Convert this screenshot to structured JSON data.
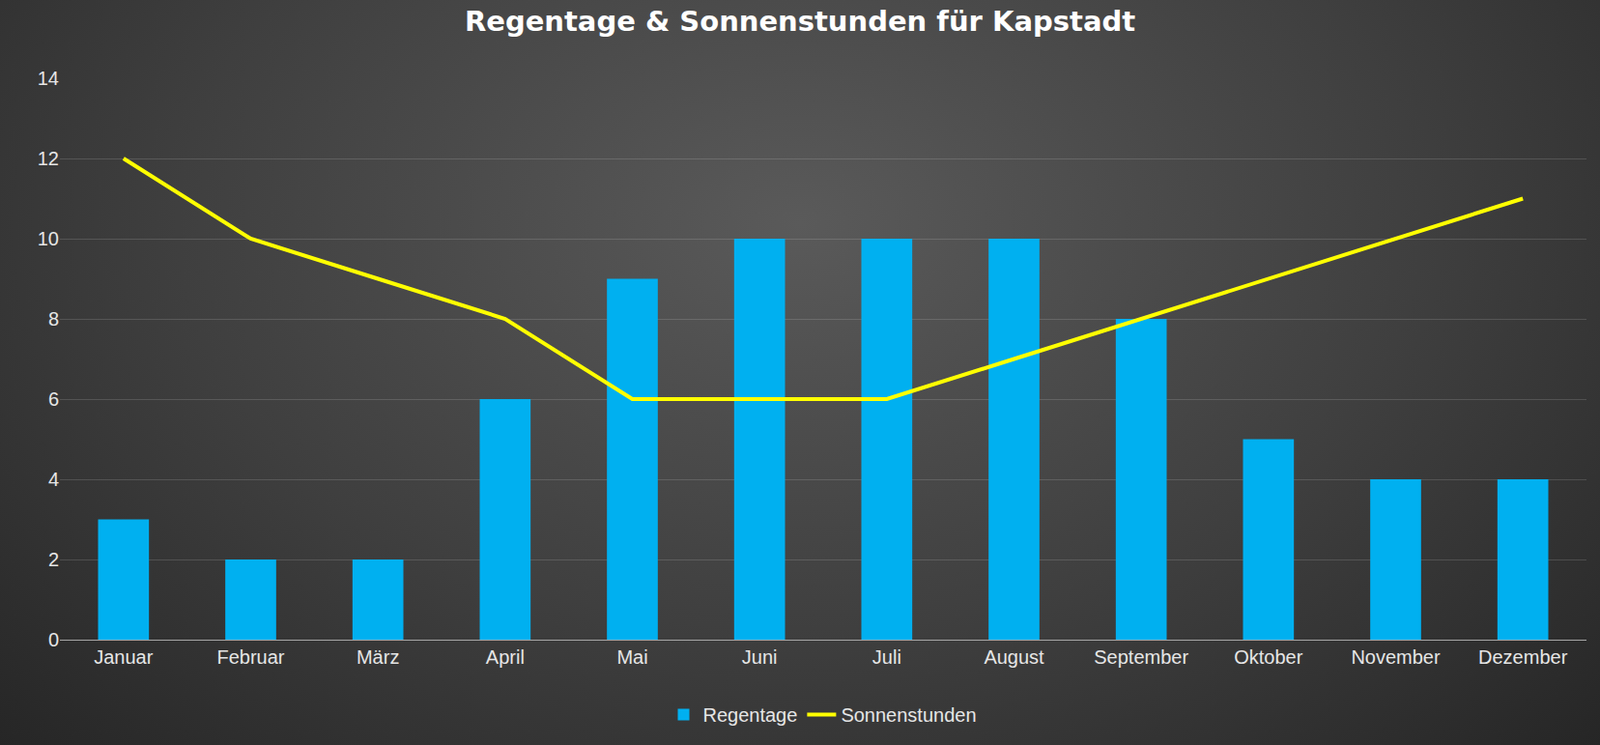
{
  "chart_data": {
    "type": "bar",
    "title": "Regentage & Sonnenstunden für Kapstadt",
    "categories": [
      "Januar",
      "Februar",
      "März",
      "April",
      "Mai",
      "Juni",
      "Juli",
      "August",
      "September",
      "Oktober",
      "November",
      "Dezember"
    ],
    "series": [
      {
        "name": "Regentage",
        "type": "bar",
        "color": "#00b0f0",
        "values": [
          3,
          2,
          2,
          6,
          9,
          10,
          10,
          10,
          8,
          5,
          4,
          4
        ]
      },
      {
        "name": "Sonnenstunden",
        "type": "line",
        "color": "#ffff00",
        "values": [
          12,
          10,
          9,
          8,
          6,
          6,
          6,
          7,
          8,
          9,
          10,
          11
        ]
      }
    ],
    "ylim": [
      0,
      14
    ],
    "yticks": [
      0,
      2,
      4,
      6,
      8,
      10,
      12,
      14
    ],
    "grid": true,
    "legend": "bottom"
  }
}
